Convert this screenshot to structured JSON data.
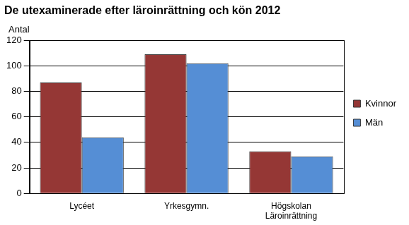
{
  "chart_data": {
    "type": "bar",
    "title": "De utexaminerade efter läroinrättning och kön 2012",
    "ylabel": "Antal",
    "categories": [
      "Lycéet",
      "Yrkesgymn.",
      [
        "Högskolan",
        "Läroinrättning"
      ]
    ],
    "series": [
      {
        "name": "Kvinnor",
        "color": "#953735",
        "values": [
          87,
          109,
          33
        ]
      },
      {
        "name": "Män",
        "color": "#558ed5",
        "values": [
          44,
          102,
          29
        ]
      }
    ],
    "ylim": [
      0,
      120
    ],
    "yticks": [
      0,
      20,
      40,
      60,
      80,
      100,
      120
    ],
    "grid": true,
    "legend": "right"
  }
}
